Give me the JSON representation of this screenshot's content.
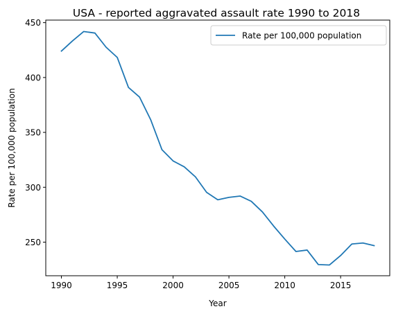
{
  "chart_data": {
    "type": "line",
    "title": "USA - reported aggravated assault rate 1990 to 2018",
    "xlabel": "Year",
    "ylabel": "Rate per 100,000 population",
    "xlim": [
      1988.6,
      2019.4
    ],
    "ylim": [
      219.4,
      452.3
    ],
    "x_ticks": [
      1990,
      1995,
      2000,
      2005,
      2010,
      2015
    ],
    "y_ticks": [
      250,
      300,
      350,
      400,
      450
    ],
    "grid": false,
    "legend": {
      "position": "top-right"
    },
    "x": [
      1990,
      1991,
      1992,
      1993,
      1994,
      1995,
      1996,
      1997,
      1998,
      1999,
      2000,
      2001,
      2002,
      2003,
      2004,
      2005,
      2006,
      2007,
      2008,
      2009,
      2010,
      2011,
      2012,
      2013,
      2014,
      2015,
      2016,
      2017,
      2018
    ],
    "series": [
      {
        "name": "Rate per 100,000 population",
        "color": "#1f77b4",
        "values": [
          424.1,
          433.4,
          441.9,
          440.5,
          427.6,
          418.3,
          391.0,
          382.1,
          361.4,
          334.3,
          324.0,
          318.6,
          309.5,
          295.4,
          288.6,
          290.8,
          292.0,
          287.2,
          277.5,
          264.7,
          252.8,
          241.5,
          242.8,
          229.6,
          229.2,
          237.8,
          248.3,
          249.2,
          246.8
        ]
      }
    ]
  }
}
